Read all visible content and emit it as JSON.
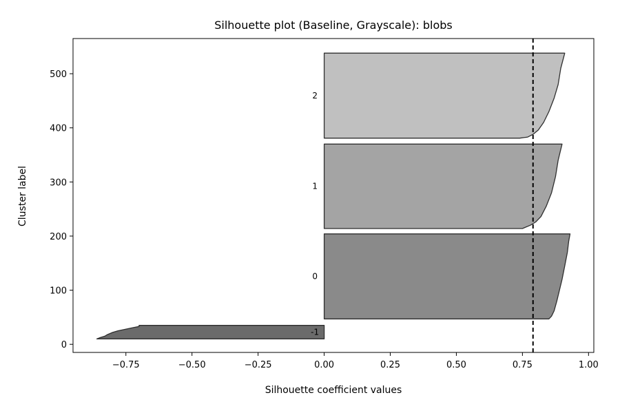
{
  "chart_data": {
    "type": "area",
    "title": "Silhouette plot (Baseline, Grayscale): blobs",
    "xlabel": "Silhouette coefficient values",
    "ylabel": "Cluster label",
    "xlim": [
      -0.95,
      1.02
    ],
    "ylim": [
      -15,
      565
    ],
    "xticks": [
      -0.75,
      -0.5,
      -0.25,
      0.0,
      0.25,
      0.5,
      0.75,
      1.0
    ],
    "xtick_labels": [
      "−0.75",
      "−0.50",
      "−0.25",
      "0.00",
      "0.25",
      "0.50",
      "0.75",
      "1.00"
    ],
    "yticks": [
      0,
      100,
      200,
      300,
      400,
      500
    ],
    "ytick_labels": [
      "0",
      "100",
      "200",
      "300",
      "400",
      "500"
    ],
    "average_silhouette": 0.79,
    "grid": false,
    "clusters": [
      {
        "label": "-1",
        "color": "#6b6b6b",
        "y_lower": 10,
        "y_upper": 35,
        "profile": [
          [
            10,
            -0.86
          ],
          [
            12,
            -0.85
          ],
          [
            15,
            -0.83
          ],
          [
            18,
            -0.82
          ],
          [
            22,
            -0.8
          ],
          [
            25,
            -0.78
          ],
          [
            27,
            -0.76
          ],
          [
            29,
            -0.74
          ],
          [
            31,
            -0.72
          ],
          [
            33,
            -0.7
          ],
          [
            35,
            -0.7
          ]
        ]
      },
      {
        "label": "0",
        "color": "#8a8a8a",
        "y_lower": 47,
        "y_upper": 204,
        "profile": [
          [
            47,
            0.85
          ],
          [
            52,
            0.86
          ],
          [
            62,
            0.87
          ],
          [
            80,
            0.88
          ],
          [
            100,
            0.89
          ],
          [
            120,
            0.9
          ],
          [
            145,
            0.91
          ],
          [
            170,
            0.92
          ],
          [
            190,
            0.925
          ],
          [
            204,
            0.93
          ]
        ]
      },
      {
        "label": "1",
        "color": "#a4a4a4",
        "y_lower": 214,
        "y_upper": 370,
        "profile": [
          [
            214,
            0.75
          ],
          [
            216,
            0.76
          ],
          [
            220,
            0.78
          ],
          [
            226,
            0.8
          ],
          [
            236,
            0.82
          ],
          [
            255,
            0.84
          ],
          [
            280,
            0.86
          ],
          [
            310,
            0.875
          ],
          [
            340,
            0.885
          ],
          [
            370,
            0.9
          ]
        ]
      },
      {
        "label": "2",
        "color": "#c0c0c0",
        "y_lower": 381,
        "y_upper": 538,
        "profile": [
          [
            381,
            0.74
          ],
          [
            383,
            0.77
          ],
          [
            388,
            0.79
          ],
          [
            396,
            0.81
          ],
          [
            410,
            0.83
          ],
          [
            430,
            0.85
          ],
          [
            455,
            0.87
          ],
          [
            480,
            0.885
          ],
          [
            510,
            0.895
          ],
          [
            538,
            0.91
          ]
        ]
      }
    ]
  }
}
